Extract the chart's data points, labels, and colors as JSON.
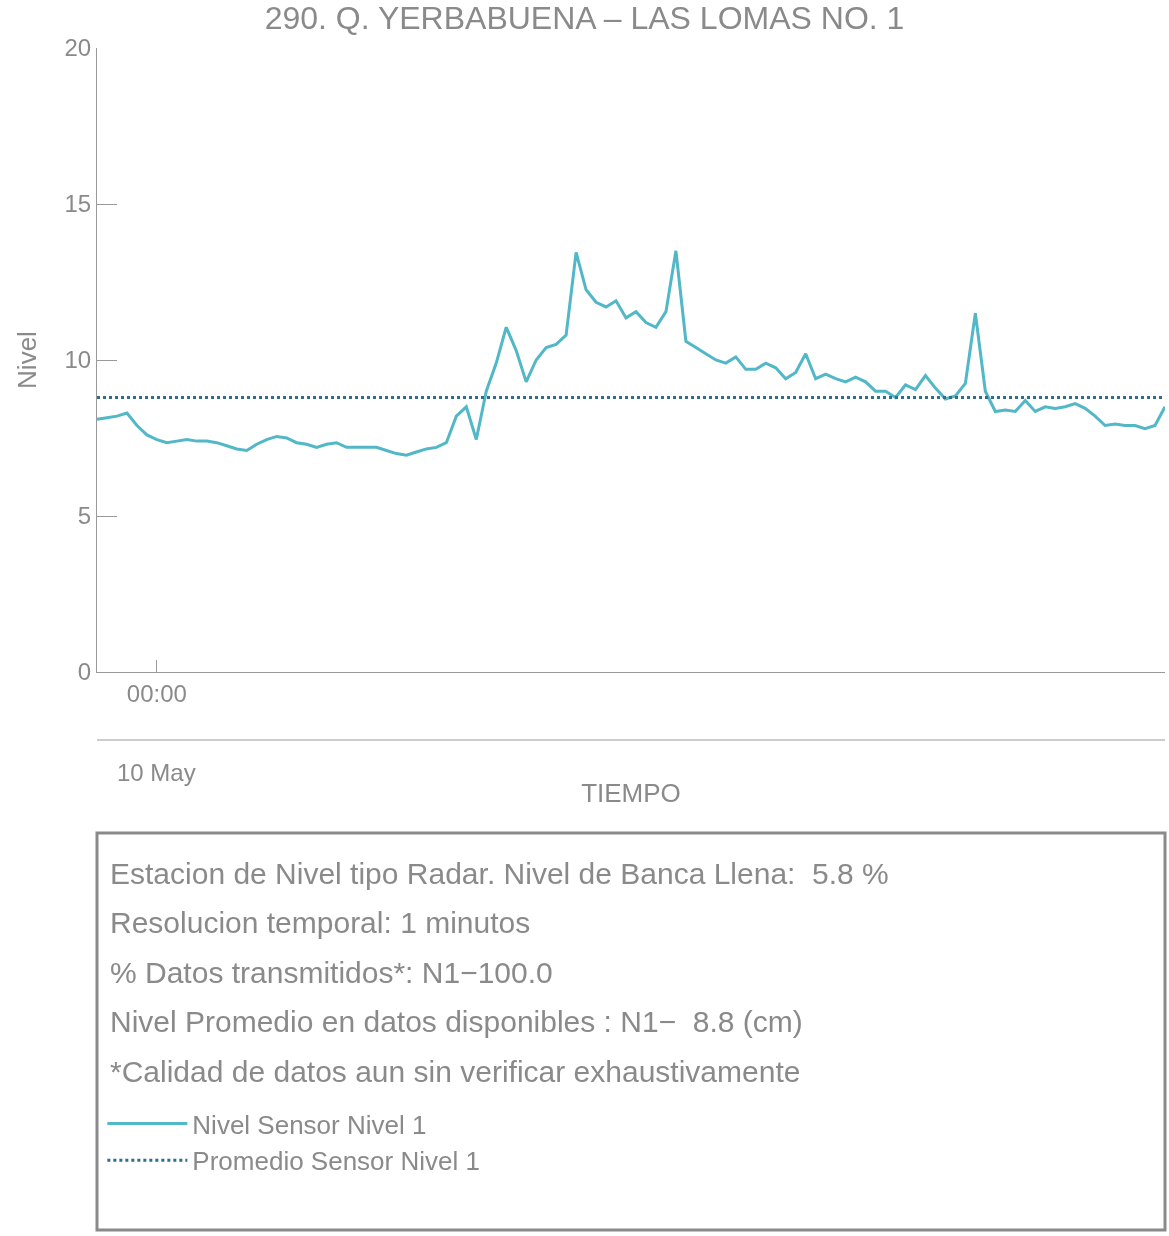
{
  "chart_data": {
    "type": "line",
    "title": "290. Q. YERBABUENA – LAS LOMAS NO. 1",
    "xlabel": "TIEMPO",
    "ylabel": "Nivel",
    "categories": [
      null,
      null,
      null,
      null,
      null,
      null,
      "00:00",
      null,
      null,
      null,
      null,
      null,
      null,
      null,
      null,
      null,
      null,
      null,
      null,
      null,
      null,
      null,
      null,
      null,
      null,
      null,
      null,
      null,
      null,
      null,
      null,
      null,
      null,
      null,
      null,
      null,
      null,
      null,
      null,
      null,
      null,
      null,
      null,
      null,
      null,
      null,
      null,
      null,
      null,
      null,
      null,
      null,
      null,
      null,
      null,
      null,
      null,
      null,
      null,
      null,
      null,
      null,
      null,
      null,
      null,
      null,
      null,
      null,
      null,
      null,
      null,
      null,
      null,
      null,
      null,
      null,
      null,
      null,
      null,
      null,
      null,
      null,
      null,
      null,
      null,
      null,
      null,
      null,
      null,
      null,
      null,
      null,
      null,
      null,
      null,
      null,
      null,
      null,
      null,
      null,
      null,
      null,
      null,
      null,
      null,
      null,
      null,
      null
    ],
    "ylim": [
      0,
      20
    ],
    "yticks": [
      0,
      5,
      10,
      15,
      20
    ],
    "legend": "bottom",
    "line_style": "solid",
    "series": [
      {
        "name": "Nivel Sensor Nivel 1",
        "color": "#52b7c6",
        "values": [
          8.1,
          8.15,
          8.2,
          8.3,
          7.9,
          7.6,
          7.45,
          7.35,
          7.4,
          7.45,
          7.4,
          7.4,
          7.35,
          7.25,
          7.15,
          7.1,
          7.3,
          7.45,
          7.55,
          7.5,
          7.35,
          7.3,
          7.2,
          7.3,
          7.35,
          7.2,
          7.2,
          7.2,
          7.2,
          7.1,
          7.0,
          6.95,
          7.05,
          7.15,
          7.2,
          7.35,
          8.2,
          8.5,
          7.45,
          9.0,
          9.9,
          11.05,
          10.3,
          9.3,
          10.0,
          10.4,
          10.5,
          10.8,
          13.45,
          12.25,
          11.85,
          11.7,
          11.9,
          11.35,
          11.55,
          11.2,
          11.05,
          11.55,
          13.5,
          10.6,
          10.4,
          10.2,
          10.0,
          9.9,
          10.1,
          9.7,
          9.7,
          9.9,
          9.75,
          9.4,
          9.6,
          10.2,
          9.4,
          9.55,
          9.4,
          9.3,
          9.45,
          9.3,
          9.0,
          9.0,
          8.8,
          9.2,
          9.05,
          9.5,
          9.1,
          8.75,
          8.85,
          9.25,
          11.5,
          9.0,
          8.35,
          8.4,
          8.35,
          8.7,
          8.35,
          8.5,
          8.45,
          8.5,
          8.6,
          8.45,
          8.2,
          7.9,
          7.95,
          7.9,
          7.9,
          7.8,
          7.9,
          8.5
        ]
      }
    ],
    "ref_lines": [
      {
        "axis": "y",
        "value": 8.8,
        "label": "Promedio Sensor Nivel 1",
        "color": "#2e6e8a",
        "line_style": "dotted"
      }
    ],
    "annotations": [
      "10 May",
      "Estacion de Nivel tipo Radar. Nivel de Banca Llena:  5.8 %",
      "Resolucion temporal: 1 minutos",
      "% Datos transmitidos*: N1−100.0",
      "Nivel Promedio en datos disponibles : N1−  8.8 (cm)",
      "*Calidad de datos aun sin verificar exhaustivamente"
    ]
  }
}
